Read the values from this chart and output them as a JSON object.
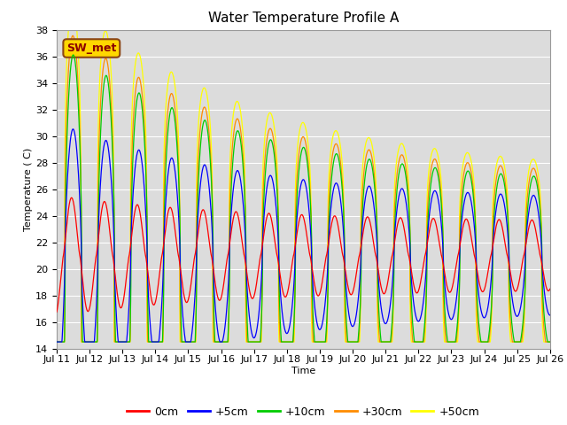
{
  "title": "Water Temperature Profile A",
  "xlabel": "Time",
  "ylabel": "Temperature ( C)",
  "ylim": [
    14,
    38
  ],
  "yticks": [
    14,
    16,
    18,
    20,
    22,
    24,
    26,
    28,
    30,
    32,
    34,
    36,
    38
  ],
  "annotation_text": "SW_met",
  "annotation_color": "#8B0000",
  "annotation_bg": "#FFD700",
  "bg_color": "#DCDCDC",
  "grid_color": "#FFFFFF",
  "line_colors": {
    "0cm": "#FF0000",
    "+5cm": "#0000FF",
    "+10cm": "#00CC00",
    "+30cm": "#FF8C00",
    "+50cm": "#FFFF00"
  },
  "x_tick_labels": [
    "Jul 11",
    "Jul 12",
    "Jul 13",
    "Jul 14",
    "Jul 15",
    "Jul 16",
    "Jul 17",
    "Jul 18",
    "Jul 19",
    "Jul 20",
    "Jul 21",
    "Jul 22",
    "Jul 23",
    "Jul 24",
    "Jul 25",
    "Jul 26"
  ],
  "title_fontsize": 11,
  "axis_fontsize": 8,
  "tick_fontsize": 8,
  "legend_fontsize": 9
}
